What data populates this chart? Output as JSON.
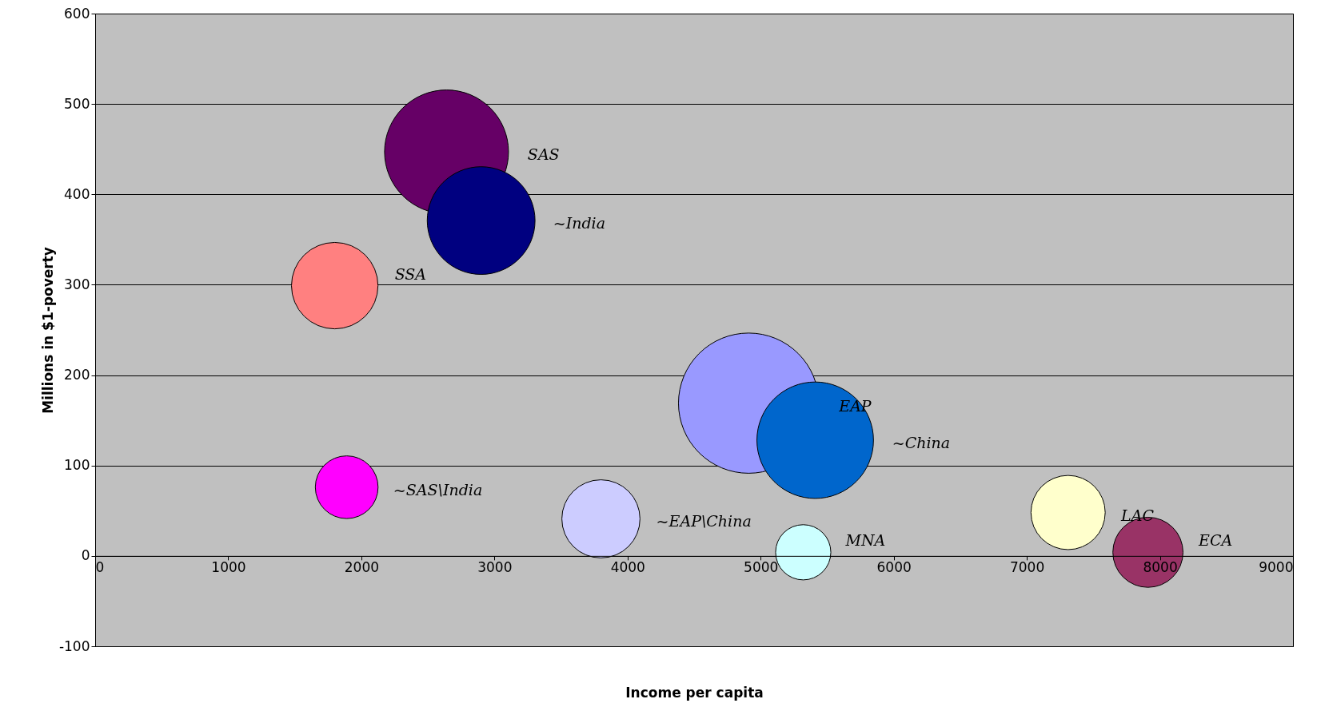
{
  "chart_data": {
    "type": "bubble",
    "xlabel": "Income per capita",
    "ylabel": "Millions in $1-poverty",
    "xlim": [
      0,
      9000
    ],
    "xticks": [
      0,
      1000,
      2000,
      3000,
      4000,
      5000,
      6000,
      7000,
      8000,
      9000
    ],
    "ylim": [
      -100,
      600
    ],
    "yticks": [
      -100,
      0,
      100,
      200,
      300,
      400,
      500,
      600
    ],
    "grid": "y",
    "series": [
      {
        "name": "SAS",
        "color": "#660066",
        "x": [
          2640
        ],
        "values": [
          447
        ],
        "sizes": [
          0.78
        ]
      },
      {
        "name": "~India",
        "color": "#000080",
        "x": [
          2900
        ],
        "values": [
          371
        ],
        "sizes": [
          0.59
        ]
      },
      {
        "name": "SSA",
        "color": "#ff8080",
        "x": [
          1800
        ],
        "values": [
          299
        ],
        "sizes": [
          0.38
        ]
      },
      {
        "name": "EAP",
        "color": "#9999ff",
        "x": [
          4910
        ],
        "values": [
          169
        ],
        "sizes": [
          1
        ]
      },
      {
        "name": "~China",
        "color": "#0066cc",
        "x": [
          5410
        ],
        "values": [
          128
        ],
        "sizes": [
          0.69
        ]
      },
      {
        "name": "~SAS\\India",
        "color": "#ff00ff",
        "x": [
          1890
        ],
        "values": [
          76
        ],
        "sizes": [
          0.2
        ]
      },
      {
        "name": "~EAP\\China",
        "color": "#ccccff",
        "x": [
          3800
        ],
        "values": [
          41
        ],
        "sizes": [
          0.31
        ]
      },
      {
        "name": "MNA",
        "color": "#ccffff",
        "x": [
          5320
        ],
        "values": [
          4
        ],
        "sizes": [
          0.155
        ]
      },
      {
        "name": "LAC",
        "color": "#ffffcc",
        "x": [
          7310
        ],
        "values": [
          48
        ],
        "sizes": [
          0.28
        ]
      },
      {
        "name": "ECA",
        "color": "#993366",
        "x": [
          7910
        ],
        "values": [
          4
        ],
        "sizes": [
          0.25
        ]
      }
    ]
  }
}
